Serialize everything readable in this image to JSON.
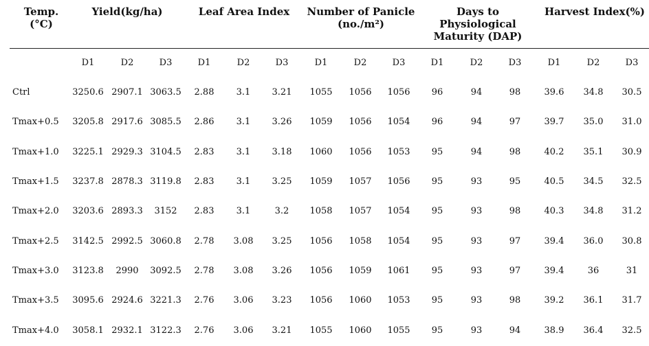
{
  "headers": {
    "temp": [
      "Temp.",
      "(°C)"
    ],
    "yield": "Yield(kg/ha)",
    "lai": "Leaf Area Index",
    "panicle": [
      "Number of Panicle",
      "(no./m²)"
    ],
    "days": [
      "Days to",
      "Physiological",
      "Maturity (DAP)"
    ],
    "harvest": "Harvest Index(%)"
  },
  "subheaders": [
    "D1",
    "D2",
    "D3",
    "D1",
    "D2",
    "D3",
    "D1",
    "D2",
    "D3",
    "D1",
    "D2",
    "D3",
    "D1",
    "D2",
    "D3"
  ],
  "rows": [
    {
      "label": "Ctrl",
      "values": [
        "3250.6",
        "2907.1",
        "3063.5",
        "2.88",
        "3.1",
        "3.21",
        "1055",
        "1056",
        "1056",
        "96",
        "94",
        "98",
        "39.6",
        "34.8",
        "30.5"
      ]
    },
    {
      "label": "Tmax+0.5",
      "values": [
        "3205.8",
        "2917.6",
        "3085.5",
        "2.86",
        "3.1",
        "3.26",
        "1059",
        "1056",
        "1054",
        "96",
        "94",
        "97",
        "39.7",
        "35.0",
        "31.0"
      ]
    },
    {
      "label": "Tmax+1.0",
      "values": [
        "3225.1",
        "2929.3",
        "3104.5",
        "2.83",
        "3.1",
        "3.18",
        "1060",
        "1056",
        "1053",
        "95",
        "94",
        "98",
        "40.2",
        "35.1",
        "30.9"
      ]
    },
    {
      "label": "Tmax+1.5",
      "values": [
        "3237.8",
        "2878.3",
        "3119.8",
        "2.83",
        "3.1",
        "3.25",
        "1059",
        "1057",
        "1056",
        "95",
        "93",
        "95",
        "40.5",
        "34.5",
        "32.5"
      ]
    },
    {
      "label": "Tmax+2.0",
      "values": [
        "3203.6",
        "2893.3",
        "3152",
        "2.83",
        "3.1",
        "3.2",
        "1058",
        "1057",
        "1054",
        "95",
        "93",
        "98",
        "40.3",
        "34.8",
        "31.2"
      ]
    },
    {
      "label": "Tmax+2.5",
      "values": [
        "3142.5",
        "2992.5",
        "3060.8",
        "2.78",
        "3.08",
        "3.25",
        "1056",
        "1058",
        "1054",
        "95",
        "93",
        "97",
        "39.4",
        "36.0",
        "30.8"
      ]
    },
    {
      "label": "Tmax+3.0",
      "values": [
        "3123.8",
        "2990",
        "3092.5",
        "2.78",
        "3.08",
        "3.26",
        "1056",
        "1059",
        "1061",
        "95",
        "93",
        "97",
        "39.4",
        "36",
        "31"
      ]
    },
    {
      "label": "Tmax+3.5",
      "values": [
        "3095.6",
        "2924.6",
        "3221.3",
        "2.76",
        "3.06",
        "3.23",
        "1056",
        "1060",
        "1053",
        "95",
        "93",
        "98",
        "39.2",
        "36.1",
        "31.7"
      ]
    },
    {
      "label": "Tmax+4.0",
      "values": [
        "3058.1",
        "2932.1",
        "3122.3",
        "2.76",
        "3.06",
        "3.21",
        "1055",
        "1060",
        "1055",
        "95",
        "93",
        "94",
        "38.9",
        "36.4",
        "32.5"
      ]
    }
  ]
}
